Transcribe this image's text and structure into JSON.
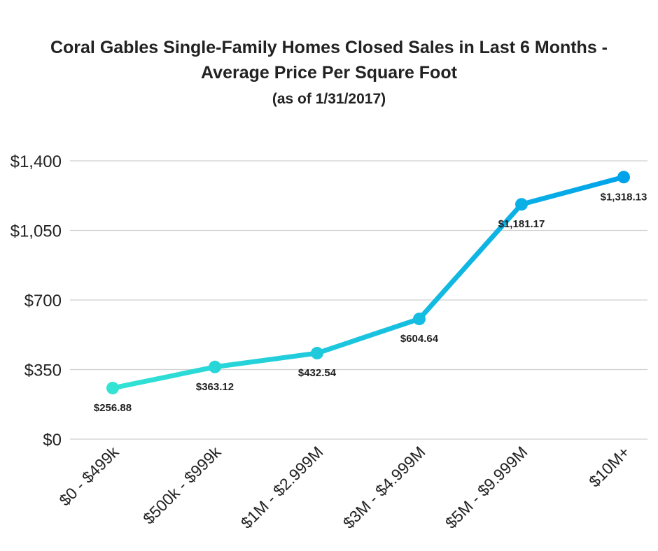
{
  "chart_data": {
    "type": "line",
    "title": "Coral Gables Single-Family Homes Closed Sales in Last 6 Months -",
    "title_line2": "Average Price Per Square Foot",
    "subtitle": "(as of 1/31/2017)",
    "xlabel": "",
    "ylabel": "",
    "categories": [
      "$0 - $499k",
      "$500k - $999k",
      "$1M - $2.999M",
      "$3M - $4.999M",
      "$5M - $9.999M",
      "$10M+"
    ],
    "values": [
      256.88,
      363.12,
      432.54,
      604.64,
      1181.17,
      1318.13
    ],
    "data_labels": [
      "$256.88",
      "$363.12",
      "$432.54",
      "$604.64",
      "$1,181.17",
      "$1,318.13"
    ],
    "ylim": [
      0,
      1400
    ],
    "yticks": [
      0,
      350,
      700,
      1050,
      1400
    ],
    "ytick_labels": [
      "$0",
      "$350",
      "$700",
      "$1,050",
      "$1,400"
    ],
    "grid": true,
    "legend": "none",
    "colors": {
      "start": "#33e3d3",
      "end": "#00a3ea",
      "grid": "#d0d0d0",
      "text": "#222222"
    }
  }
}
